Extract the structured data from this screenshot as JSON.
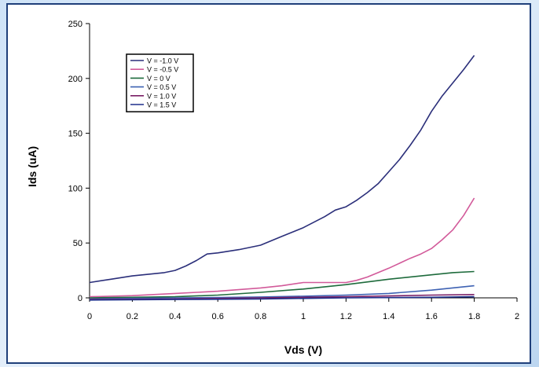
{
  "chart_data": {
    "type": "line",
    "title": "",
    "xlabel": "Vds (V)",
    "ylabel": "Ids (uA)",
    "xlim": [
      0,
      2
    ],
    "ylim": [
      0,
      250
    ],
    "x_ticks": [
      0,
      0.2,
      0.4,
      0.6,
      0.8,
      1,
      1.2,
      1.4,
      1.6,
      1.8,
      2
    ],
    "x_tick_labels": [
      "0",
      "0.2",
      "0.4",
      "0.6",
      "0.8",
      "1",
      "1.2",
      "1.4",
      "1.6",
      "1.8",
      "2"
    ],
    "y_ticks": [
      0,
      50,
      100,
      150,
      200,
      250
    ],
    "y_tick_labels": [
      "0",
      "50",
      "100",
      "150",
      "200",
      "250"
    ],
    "grid": false,
    "legend_position": "top-left",
    "series": [
      {
        "name": "V = -1.0 V",
        "color": "#2b2f7a",
        "x": [
          0,
          0.1,
          0.2,
          0.3,
          0.35,
          0.4,
          0.45,
          0.5,
          0.55,
          0.6,
          0.7,
          0.8,
          0.9,
          1.0,
          1.1,
          1.15,
          1.2,
          1.25,
          1.3,
          1.35,
          1.4,
          1.45,
          1.5,
          1.55,
          1.6,
          1.65,
          1.7,
          1.75,
          1.8
        ],
        "y": [
          14,
          17,
          20,
          22,
          23,
          25,
          29,
          34,
          40,
          41,
          44,
          48,
          56,
          64,
          74,
          80,
          83,
          89,
          96,
          104,
          115,
          126,
          139,
          153,
          170,
          184,
          196,
          208,
          221
        ]
      },
      {
        "name": "V = -0.5 V",
        "color": "#d25a9a",
        "x": [
          0,
          0.2,
          0.4,
          0.6,
          0.8,
          0.9,
          1.0,
          1.1,
          1.2,
          1.25,
          1.3,
          1.4,
          1.5,
          1.55,
          1.6,
          1.65,
          1.7,
          1.75,
          1.8
        ],
        "y": [
          1,
          2,
          4,
          6,
          9,
          11,
          14,
          14,
          14,
          16,
          19,
          27,
          36,
          40,
          45,
          53,
          62,
          75,
          91
        ]
      },
      {
        "name": "V = 0 V",
        "color": "#1e6b3c",
        "x": [
          0,
          0.2,
          0.4,
          0.6,
          0.8,
          1.0,
          1.2,
          1.4,
          1.6,
          1.7,
          1.8
        ],
        "y": [
          0,
          0.5,
          1,
          2.5,
          5,
          8,
          12,
          17,
          21,
          23,
          24
        ]
      },
      {
        "name": "V = 0.5 V",
        "color": "#3e62b3",
        "x": [
          0,
          0.2,
          0.4,
          0.6,
          0.8,
          1.0,
          1.2,
          1.4,
          1.6,
          1.8
        ],
        "y": [
          -1,
          -0.5,
          0,
          0.3,
          0.8,
          1.5,
          2.5,
          4,
          7,
          11
        ]
      },
      {
        "name": "V = 1.0 V",
        "color": "#7a1f66",
        "x": [
          0,
          0.4,
          0.8,
          1.2,
          1.6,
          1.8
        ],
        "y": [
          -1.5,
          -1,
          0,
          1,
          2.5,
          3
        ]
      },
      {
        "name": "V = 1.5 V",
        "color": "#1f2f8c",
        "x": [
          0,
          0.4,
          0.8,
          1.2,
          1.6,
          1.8
        ],
        "y": [
          -2,
          -1.5,
          -1,
          0,
          0.5,
          1
        ]
      }
    ]
  }
}
